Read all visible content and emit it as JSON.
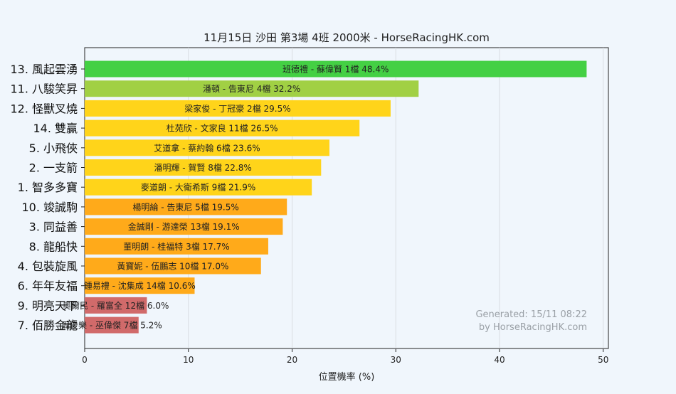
{
  "chart_data": {
    "type": "bar",
    "orientation": "horizontal",
    "title": "11月15日  沙田  第3場  4班  2000米 - HorseRacingHK.com",
    "xlabel": "位置機率 (%)",
    "ylabel": "",
    "xlim": [
      0,
      50.5
    ],
    "xticks": [
      0,
      10,
      20,
      30,
      40,
      50
    ],
    "grid": true,
    "categories": [
      "13. 風起雲湧",
      "11. 八駿笑昇",
      "12. 怪獸叉燒",
      "14. 雙贏",
      "5. 小飛俠",
      "2. 一支箭",
      "1. 智多多寶",
      "10. 竣誠駒",
      "3. 同益善",
      "8. 龍船快",
      "4. 包裝旋風",
      "6. 年年友福",
      "9. 明亮天下",
      "7. 佰勝金龍"
    ],
    "values": [
      48.4,
      32.2,
      29.5,
      26.5,
      23.6,
      22.8,
      21.9,
      19.5,
      19.1,
      17.7,
      17.0,
      10.6,
      6.0,
      5.2
    ],
    "bar_labels": [
      "班德禮 - 蘇偉賢 1檔  48.4%",
      "潘頓 - 告東尼 4檔  32.2%",
      "梁家俊 - 丁冠豪 2檔  29.5%",
      "杜苑欣 - 文家良 11檔  26.5%",
      "艾道拿 - 蔡約翰 6檔  23.6%",
      "潘明輝 - 賀賢 8檔  22.8%",
      "麥道朗 - 大衛希斯 9檔  21.9%",
      "楊明綸 - 告東尼 5檔  19.5%",
      "金誠剛 - 游達榮 13檔  19.1%",
      "董明朗 - 桂福特 3檔  17.7%",
      "黃寶妮 - 伍鵬志 10檔  17.0%",
      "鍾易禮 - 沈集成 14檔  10.6%",
      "奧爾民 - 羅富全 12檔  6.0%",
      "周俊樂 - 巫偉傑 7檔  5.2%"
    ],
    "colors": [
      "#44d044",
      "#a1d044",
      "#ffd41a",
      "#ffd41a",
      "#ffd41a",
      "#ffd41a",
      "#ffd41a",
      "#ffaa1a",
      "#ffaa1a",
      "#ffaa1a",
      "#ffaa1a",
      "#ffaa1a",
      "#d16a6a",
      "#d16a6a"
    ],
    "watermark": [
      "Generated: 15/11 08:22",
      "by HorseRacingHK.com"
    ]
  }
}
